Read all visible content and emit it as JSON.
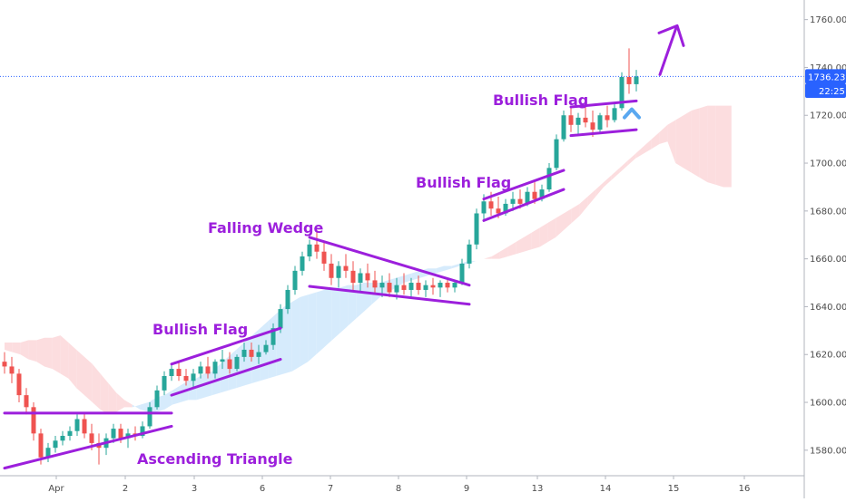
{
  "chart_data": {
    "type": "candlestick",
    "title": "",
    "xlabel": "",
    "ylabel": "",
    "ylim": [
      1570,
      1768
    ],
    "x_tick_labels": [
      "Apr",
      "2",
      "3",
      "6",
      "7",
      "8",
      "9",
      "13",
      "14",
      "15",
      "16"
    ],
    "y_tick_values": [
      1580,
      1600,
      1620,
      1640,
      1660,
      1680,
      1700,
      1720,
      1740,
      1760
    ],
    "y_tick_labels": [
      "1580.000",
      "1600.000",
      "1620.000",
      "1640.000",
      "1660.000",
      "1680.000",
      "1700.000",
      "1720.000",
      "1740.000",
      "1760.000"
    ],
    "last_price": 1736.23,
    "last_price_label": "1736.230",
    "countdown_label": "22:25",
    "colors": {
      "up": "#27a69a",
      "down": "#ef5350",
      "pattern": "#9c1fdc",
      "cloud_bull": "#cfe8fb",
      "cloud_bear": "#fbd7d9",
      "price_tag": "#2962ff",
      "arrow_blue": "#5aa8f0"
    },
    "candles": [
      [
        1617,
        1621,
        1612,
        1615
      ],
      [
        1615,
        1619,
        1608,
        1612
      ],
      [
        1612,
        1614,
        1600,
        1603
      ],
      [
        1603,
        1606,
        1595,
        1598
      ],
      [
        1598,
        1600,
        1584,
        1587
      ],
      [
        1587,
        1589,
        1574,
        1577
      ],
      [
        1577,
        1583,
        1575,
        1581
      ],
      [
        1581,
        1586,
        1579,
        1584
      ],
      [
        1584,
        1588,
        1582,
        1586
      ],
      [
        1586,
        1590,
        1584,
        1588
      ],
      [
        1588,
        1595,
        1586,
        1593
      ],
      [
        1593,
        1596,
        1585,
        1587
      ],
      [
        1587,
        1591,
        1580,
        1583
      ],
      [
        1583,
        1587,
        1574,
        1581
      ],
      [
        1581,
        1587,
        1578,
        1585
      ],
      [
        1585,
        1591,
        1583,
        1589
      ],
      [
        1589,
        1591,
        1583,
        1585
      ],
      [
        1585,
        1589,
        1581,
        1587
      ],
      [
        1587,
        1590,
        1584,
        1586
      ],
      [
        1586,
        1592,
        1585,
        1590
      ],
      [
        1590,
        1600,
        1589,
        1598
      ],
      [
        1598,
        1607,
        1597,
        1605
      ],
      [
        1605,
        1613,
        1603,
        1611
      ],
      [
        1611,
        1616,
        1609,
        1614
      ],
      [
        1614,
        1617,
        1609,
        1611
      ],
      [
        1611,
        1614,
        1607,
        1609
      ],
      [
        1609,
        1614,
        1606,
        1612
      ],
      [
        1612,
        1617,
        1610,
        1615
      ],
      [
        1615,
        1619,
        1610,
        1612
      ],
      [
        1612,
        1618,
        1610,
        1617
      ],
      [
        1617,
        1622,
        1614,
        1618
      ],
      [
        1618,
        1621,
        1612,
        1614
      ],
      [
        1614,
        1620,
        1613,
        1619
      ],
      [
        1619,
        1625,
        1617,
        1622
      ],
      [
        1622,
        1625,
        1617,
        1619
      ],
      [
        1619,
        1624,
        1616,
        1621
      ],
      [
        1621,
        1626,
        1620,
        1624
      ],
      [
        1624,
        1633,
        1622,
        1631
      ],
      [
        1631,
        1641,
        1629,
        1639
      ],
      [
        1639,
        1649,
        1637,
        1647
      ],
      [
        1647,
        1657,
        1645,
        1655
      ],
      [
        1655,
        1663,
        1653,
        1661
      ],
      [
        1661,
        1668,
        1659,
        1666
      ],
      [
        1666,
        1672,
        1660,
        1663
      ],
      [
        1663,
        1667,
        1655,
        1658
      ],
      [
        1658,
        1662,
        1649,
        1652
      ],
      [
        1652,
        1659,
        1648,
        1657
      ],
      [
        1657,
        1662,
        1652,
        1655
      ],
      [
        1655,
        1659,
        1647,
        1650
      ],
      [
        1650,
        1656,
        1646,
        1654
      ],
      [
        1654,
        1658,
        1648,
        1651
      ],
      [
        1651,
        1655,
        1645,
        1648
      ],
      [
        1648,
        1653,
        1644,
        1650
      ],
      [
        1650,
        1654,
        1644,
        1646
      ],
      [
        1646,
        1652,
        1643,
        1649
      ],
      [
        1649,
        1654,
        1645,
        1647
      ],
      [
        1647,
        1652,
        1644,
        1650
      ],
      [
        1650,
        1653,
        1645,
        1647
      ],
      [
        1647,
        1651,
        1644,
        1649
      ],
      [
        1649,
        1652,
        1645,
        1648
      ],
      [
        1648,
        1651,
        1644,
        1650
      ],
      [
        1650,
        1652,
        1646,
        1648
      ],
      [
        1648,
        1651,
        1646,
        1650
      ],
      [
        1650,
        1660,
        1649,
        1658
      ],
      [
        1658,
        1668,
        1656,
        1666
      ],
      [
        1666,
        1681,
        1664,
        1679
      ],
      [
        1679,
        1687,
        1676,
        1684
      ],
      [
        1684,
        1688,
        1678,
        1681
      ],
      [
        1681,
        1686,
        1677,
        1679
      ],
      [
        1679,
        1685,
        1678,
        1683
      ],
      [
        1683,
        1688,
        1680,
        1685
      ],
      [
        1685,
        1689,
        1681,
        1683
      ],
      [
        1683,
        1690,
        1682,
        1688
      ],
      [
        1688,
        1692,
        1683,
        1685
      ],
      [
        1685,
        1691,
        1684,
        1689
      ],
      [
        1689,
        1700,
        1688,
        1698
      ],
      [
        1698,
        1712,
        1697,
        1710
      ],
      [
        1710,
        1722,
        1709,
        1720
      ],
      [
        1720,
        1724,
        1713,
        1716
      ],
      [
        1716,
        1721,
        1712,
        1719
      ],
      [
        1719,
        1724,
        1715,
        1717
      ],
      [
        1717,
        1722,
        1711,
        1714
      ],
      [
        1714,
        1721,
        1713,
        1720
      ],
      [
        1720,
        1724,
        1715,
        1718
      ],
      [
        1718,
        1725,
        1717,
        1723
      ],
      [
        1723,
        1738,
        1722,
        1736
      ],
      [
        1736,
        1748,
        1729,
        1733
      ],
      [
        1733,
        1739,
        1730,
        1736.23
      ]
    ],
    "cloud": [
      [
        1625,
        1622
      ],
      [
        1625,
        1621
      ],
      [
        1625,
        1620
      ],
      [
        1626,
        1618
      ],
      [
        1626,
        1617
      ],
      [
        1627,
        1615
      ],
      [
        1627,
        1614
      ],
      [
        1628,
        1612
      ],
      [
        1625,
        1610
      ],
      [
        1622,
        1606
      ],
      [
        1619,
        1603
      ],
      [
        1616,
        1600
      ],
      [
        1612,
        1597
      ],
      [
        1608,
        1595
      ],
      [
        1604,
        1596
      ],
      [
        1601,
        1598
      ],
      [
        1599,
        1598
      ],
      [
        1597,
        1599
      ],
      [
        1596,
        1600
      ],
      [
        1596,
        1602
      ],
      [
        1597,
        1603
      ],
      [
        1599,
        1605
      ],
      [
        1600,
        1607
      ],
      [
        1601,
        1609
      ],
      [
        1601,
        1610
      ],
      [
        1602,
        1612
      ],
      [
        1603,
        1613
      ],
      [
        1604,
        1616
      ],
      [
        1605,
        1619
      ],
      [
        1606,
        1622
      ],
      [
        1607,
        1625
      ],
      [
        1608,
        1628
      ],
      [
        1609,
        1631
      ],
      [
        1610,
        1634
      ],
      [
        1611,
        1637
      ],
      [
        1612,
        1640
      ],
      [
        1613,
        1642
      ],
      [
        1615,
        1644
      ],
      [
        1617,
        1645
      ],
      [
        1620,
        1646
      ],
      [
        1623,
        1647
      ],
      [
        1626,
        1648
      ],
      [
        1629,
        1648
      ],
      [
        1632,
        1649
      ],
      [
        1635,
        1649
      ],
      [
        1638,
        1650
      ],
      [
        1641,
        1650
      ],
      [
        1644,
        1650
      ],
      [
        1646,
        1651
      ],
      [
        1648,
        1652
      ],
      [
        1650,
        1653
      ],
      [
        1651,
        1654
      ],
      [
        1652,
        1655
      ],
      [
        1653,
        1656
      ],
      [
        1654,
        1656
      ],
      [
        1655,
        1657
      ],
      [
        1656,
        1657
      ],
      [
        1657,
        1658
      ],
      [
        1658,
        1659
      ],
      [
        1659,
        1659
      ],
      [
        1660,
        1660
      ],
      [
        1661,
        1660
      ],
      [
        1663,
        1660
      ],
      [
        1665,
        1661
      ],
      [
        1667,
        1662
      ],
      [
        1669,
        1663
      ],
      [
        1671,
        1664
      ],
      [
        1673,
        1665
      ],
      [
        1675,
        1667
      ],
      [
        1677,
        1669
      ],
      [
        1679,
        1672
      ],
      [
        1681,
        1675
      ],
      [
        1683,
        1678
      ],
      [
        1686,
        1682
      ],
      [
        1689,
        1686
      ],
      [
        1692,
        1690
      ],
      [
        1695,
        1693
      ],
      [
        1698,
        1696
      ],
      [
        1701,
        1699
      ],
      [
        1704,
        1702
      ],
      [
        1707,
        1704
      ],
      [
        1710,
        1706
      ],
      [
        1713,
        1708
      ],
      [
        1716,
        1709
      ],
      [
        1718,
        1700
      ],
      [
        1720,
        1698
      ],
      [
        1722,
        1696
      ],
      [
        1723,
        1694
      ],
      [
        1724,
        1692
      ],
      [
        1724,
        1691
      ],
      [
        1724,
        1690
      ],
      [
        1724,
        1690
      ]
    ],
    "annotations": [
      {
        "text": "Ascending Triangle",
        "data": {
          "id": "ascending-triangle"
        }
      },
      {
        "text": "Bullish Flag",
        "data": {
          "id": "bullish-flag-1"
        }
      },
      {
        "text": "Falling Wedge",
        "data": {
          "id": "falling-wedge"
        }
      },
      {
        "text": "Bullish Flag",
        "data": {
          "id": "bullish-flag-2"
        }
      },
      {
        "text": "Bullish Flag",
        "data": {
          "id": "bullish-flag-3"
        }
      }
    ],
    "pattern_lines": [
      {
        "id": "asc-tri-top",
        "i1": 0,
        "p1": 1595.5,
        "i2": 23,
        "p2": 1595.5
      },
      {
        "id": "asc-tri-bottom",
        "i1": 0,
        "p1": 1572.5,
        "i2": 23,
        "p2": 1590
      },
      {
        "id": "flag1-top",
        "i1": 23,
        "p1": 1616,
        "i2": 38,
        "p2": 1631
      },
      {
        "id": "flag1-bottom",
        "i1": 23,
        "p1": 1603,
        "i2": 38,
        "p2": 1618
      },
      {
        "id": "wedge-top",
        "i1": 42,
        "p1": 1669,
        "i2": 64,
        "p2": 1649
      },
      {
        "id": "wedge-bottom",
        "i1": 42,
        "p1": 1648.5,
        "i2": 64,
        "p2": 1641
      },
      {
        "id": "flag2-top",
        "i1": 66,
        "p1": 1685,
        "i2": 77,
        "p2": 1697
      },
      {
        "id": "flag2-bottom",
        "i1": 66,
        "p1": 1676,
        "i2": 77,
        "p2": 1689
      },
      {
        "id": "flag3-top",
        "i1": 78,
        "p1": 1723.5,
        "i2": 87,
        "p2": 1726
      },
      {
        "id": "flag3-bottom",
        "i1": 78,
        "p1": 1711.5,
        "i2": 87,
        "p2": 1714
      }
    ],
    "grid": false,
    "legend": "none"
  }
}
